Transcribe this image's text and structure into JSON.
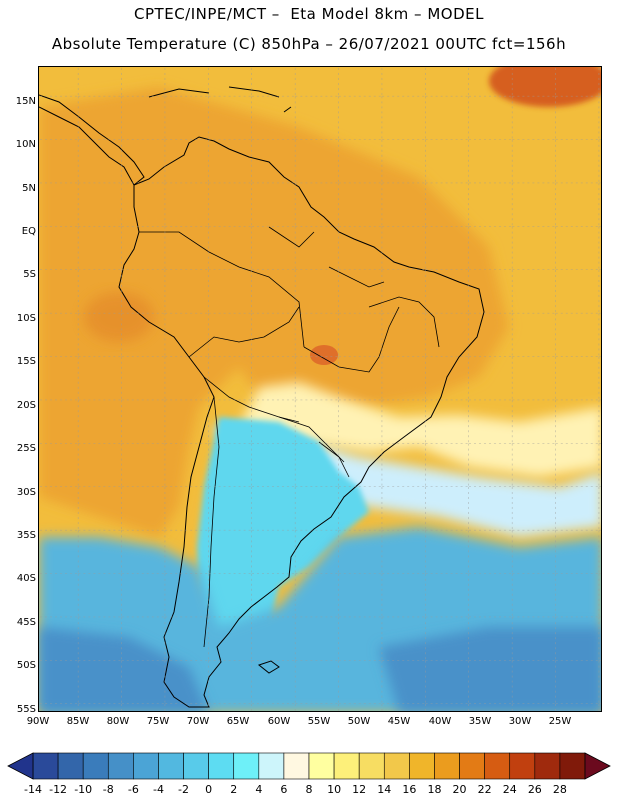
{
  "header": {
    "title_line1": "CPTEC/INPE/MCT –  Eta Model 8km – MODEL",
    "title_line2": "Absolute Temperature (C) 850hPa – 26/07/2021 00UTC fct=156h"
  },
  "map": {
    "lat_labels": [
      "15N",
      "10N",
      "5N",
      "EQ",
      "5S",
      "10S",
      "15S",
      "20S",
      "25S",
      "30S",
      "35S",
      "40S",
      "45S",
      "50S",
      "55S"
    ],
    "lon_labels": [
      "90W",
      "85W",
      "80W",
      "75W",
      "70W",
      "65W",
      "60W",
      "55W",
      "50W",
      "45W",
      "40W",
      "35W",
      "30W",
      "25W"
    ],
    "colors": {
      "ocean_warm": "#f2bd3c",
      "land_hot": "#eda533",
      "hot_core": "#df6f2a",
      "cool_band": "#fff2b4",
      "cold_water": "#cdeefc",
      "cyan_land": "#5fd7ee",
      "south_ocean": "#59b5dd",
      "deep_south": "#4a91c9"
    }
  },
  "colorbar": {
    "labels": [
      "-14",
      "-12",
      "-10",
      "-8",
      "-6",
      "-4",
      "-2",
      "0",
      "2",
      "4",
      "6",
      "8",
      "10",
      "12",
      "14",
      "16",
      "18",
      "20",
      "22",
      "24",
      "26",
      "28"
    ],
    "colors": [
      "#2a4a9a",
      "#3366aa",
      "#3a7cbb",
      "#4590c8",
      "#4ba4d6",
      "#52b8e0",
      "#58cbea",
      "#5ddcf2",
      "#6ef0f8",
      "#cdf5fb",
      "#fff8e1",
      "#ffffa0",
      "#fdf07a",
      "#f7dd62",
      "#f2c84a",
      "#f0b52a",
      "#eb9c1e",
      "#e37b15",
      "#d65c12",
      "#c1400f",
      "#9f2a0d",
      "#801a0a"
    ],
    "left_arrow_color": "#21348c",
    "right_arrow_color": "#6b0a1e"
  }
}
